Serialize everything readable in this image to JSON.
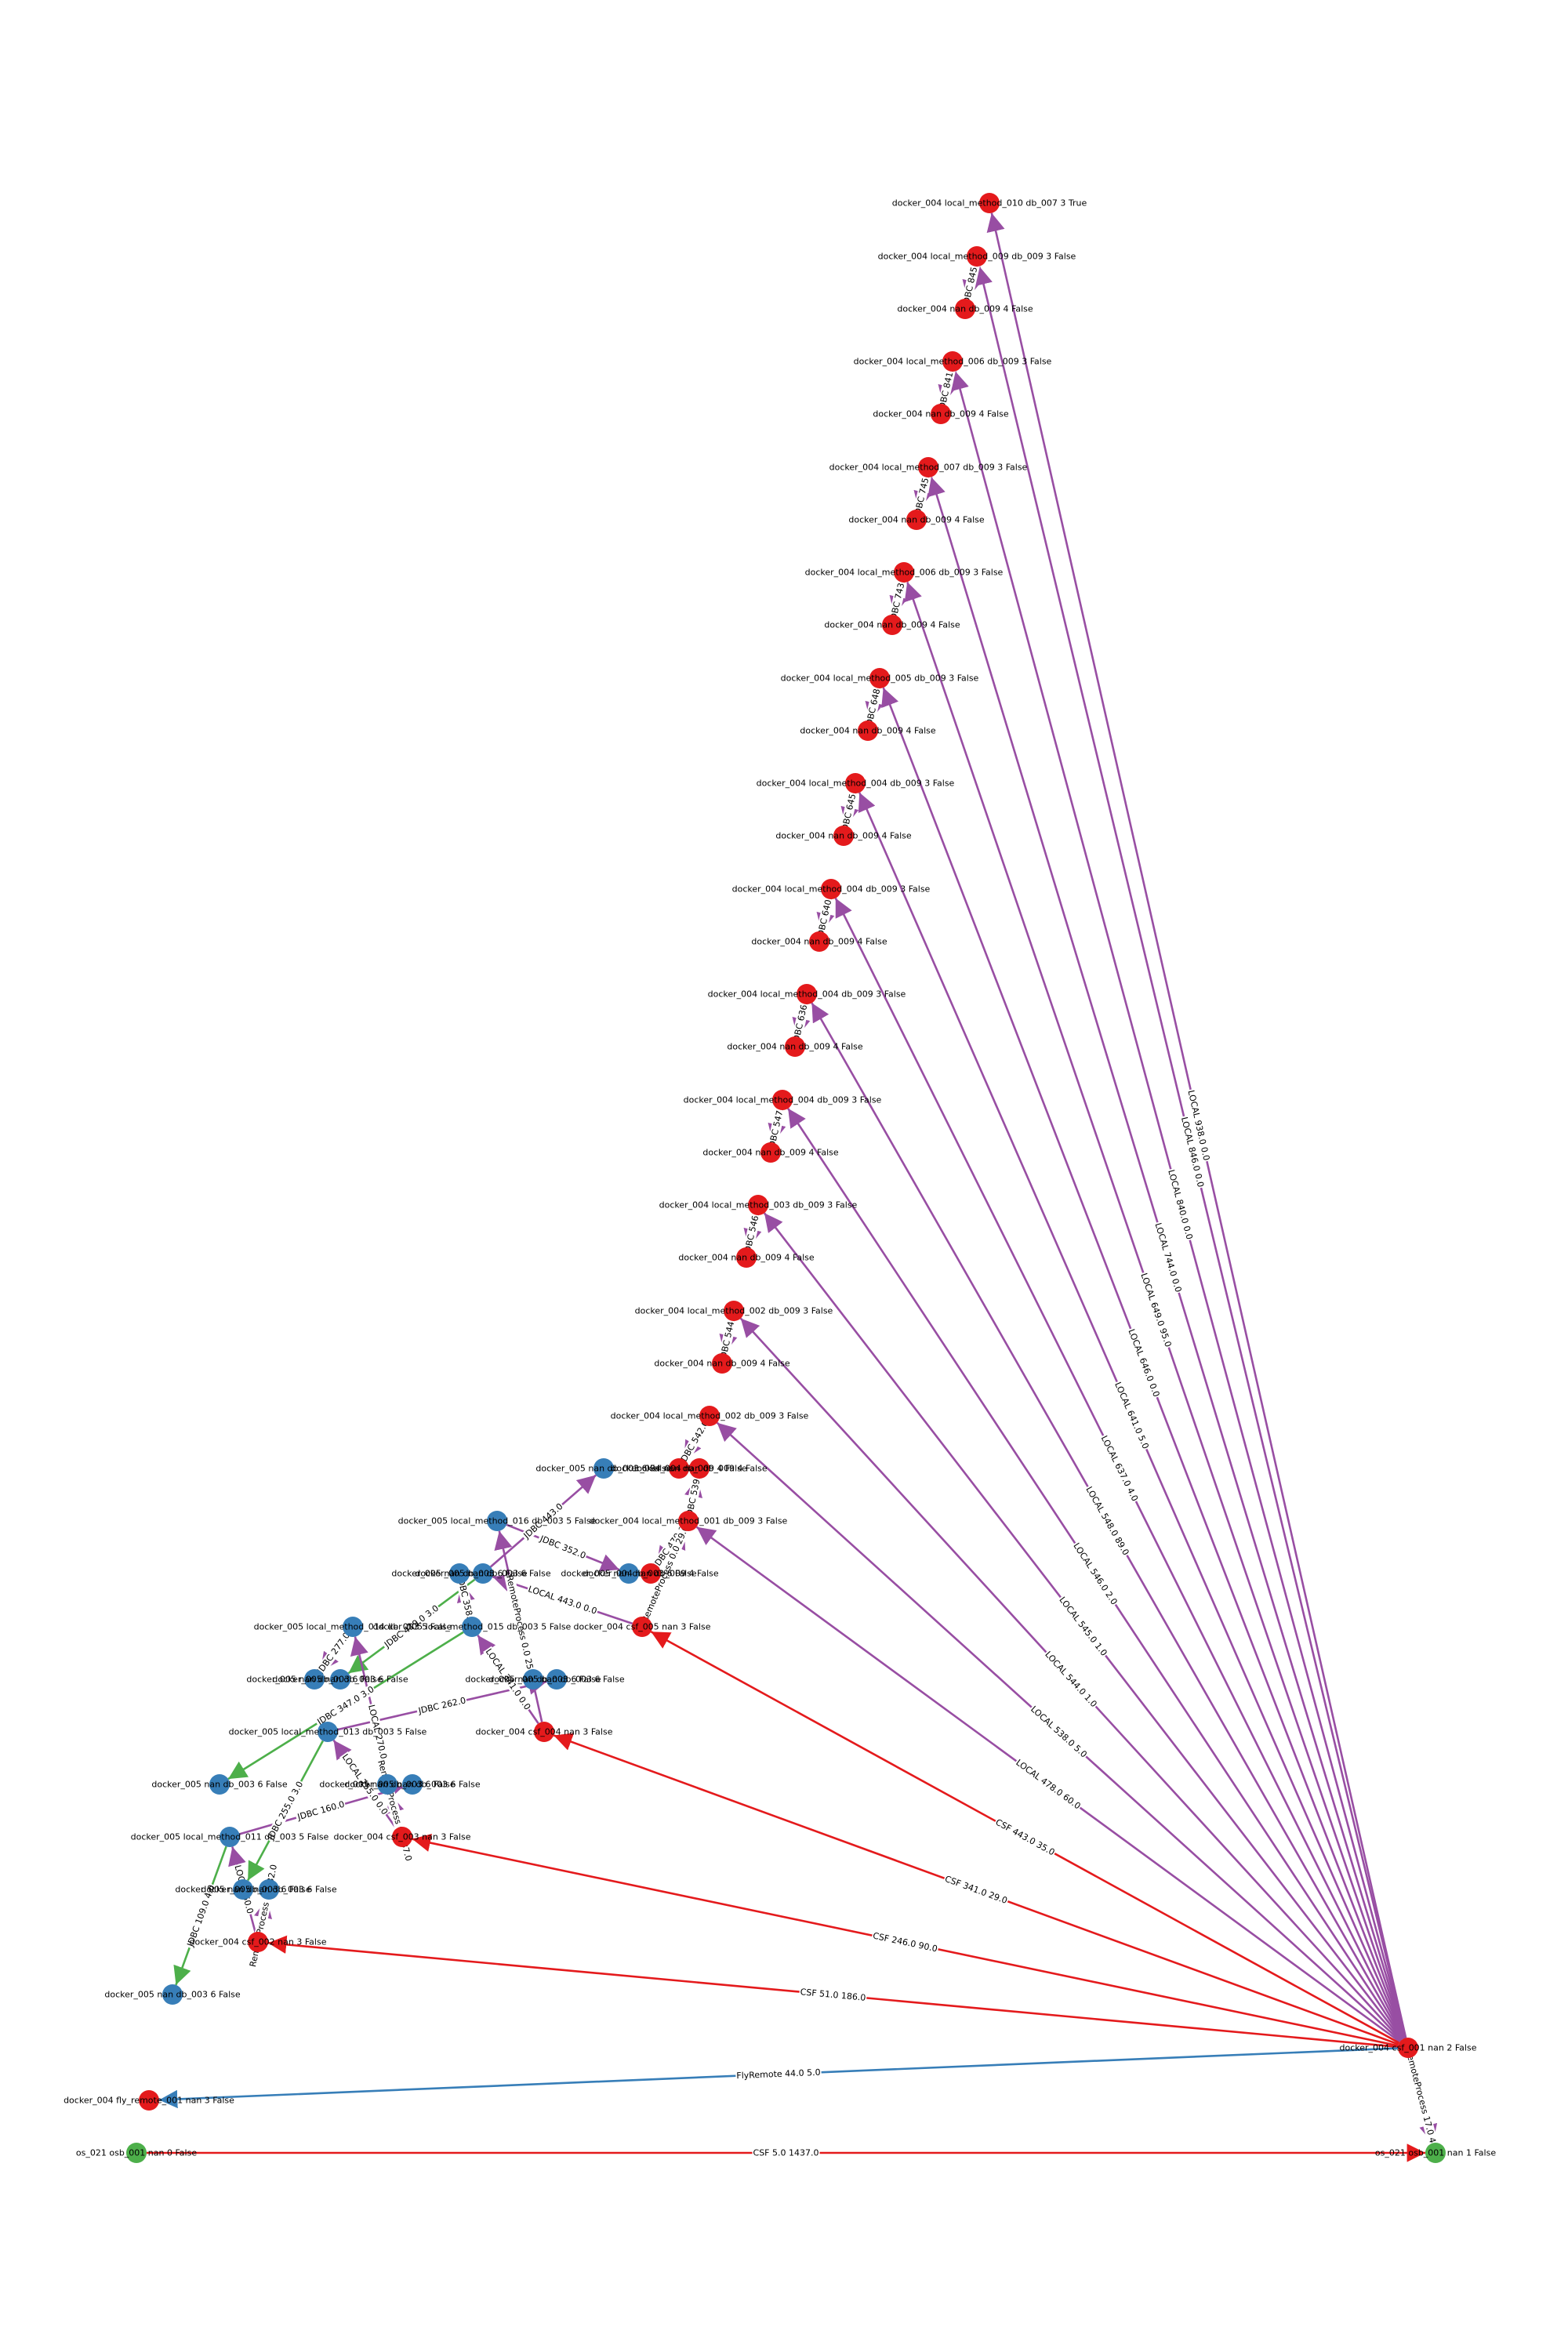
{
  "colors": {
    "red_node": "#e41a1c",
    "blue_node": "#377eb8",
    "green_node": "#4daf4a",
    "purple_edge": "#984ea3",
    "red_edge": "#e41a1c",
    "green_edge": "#4daf4a",
    "blue_edge": "#377eb8"
  },
  "nodes": [
    {
      "id": "n01",
      "label": "docker_004 local_method_010 db_007 3 True",
      "color": "red"
    },
    {
      "id": "n02",
      "label": "docker_004 local_method_009 db_009 3 False",
      "color": "red"
    },
    {
      "id": "n03",
      "label": "docker_004 nan db_009 4 False",
      "color": "red"
    },
    {
      "id": "n04",
      "label": "docker_004 local_method_006 db_009 3 False",
      "color": "red"
    },
    {
      "id": "n05",
      "label": "docker_004 nan db_009 4 False",
      "color": "red"
    },
    {
      "id": "n06",
      "label": "docker_004 local_method_007 db_009 3 False",
      "color": "red"
    },
    {
      "id": "n07",
      "label": "docker_004 nan db_009 4 False",
      "color": "red"
    },
    {
      "id": "n08",
      "label": "docker_004 local_method_006 db_009 3 False",
      "color": "red"
    },
    {
      "id": "n09",
      "label": "docker_004 nan db_009 4 False",
      "color": "red"
    },
    {
      "id": "n10",
      "label": "docker_004 local_method_005 db_009 3 False",
      "color": "red"
    },
    {
      "id": "n11",
      "label": "docker_004 nan db_009 4 False",
      "color": "red"
    },
    {
      "id": "n12",
      "label": "docker_004 local_method_004 db_009 3 False",
      "color": "red"
    },
    {
      "id": "n13",
      "label": "docker_004 nan db_009 4 False",
      "color": "red"
    },
    {
      "id": "n14",
      "label": "docker_004 local_method_004 db_009 3 False",
      "color": "red"
    },
    {
      "id": "n15",
      "label": "docker_004 nan db_009 4 False",
      "color": "red"
    },
    {
      "id": "n16",
      "label": "docker_004 local_method_004 db_009 3 False",
      "color": "red"
    },
    {
      "id": "n17",
      "label": "docker_004 nan db_009 4 False",
      "color": "red"
    },
    {
      "id": "n18",
      "label": "docker_004 local_method_004 db_009 3 False",
      "color": "red"
    },
    {
      "id": "n19",
      "label": "docker_004 nan db_009 4 False",
      "color": "red"
    },
    {
      "id": "n20",
      "label": "docker_004 local_method_003 db_009 3 False",
      "color": "red"
    },
    {
      "id": "n21",
      "label": "docker_004 nan db_009 4 False",
      "color": "red"
    },
    {
      "id": "n22",
      "label": "docker_004 local_method_002 db_009 3 False",
      "color": "red"
    },
    {
      "id": "n23",
      "label": "docker_004 nan db_009 4 False",
      "color": "red"
    },
    {
      "id": "n24",
      "label": "docker_004 local_method_002 db_009 3 False",
      "color": "red"
    },
    {
      "id": "n25",
      "label": "docker_005 nan db_003 6 False",
      "color": "blue"
    },
    {
      "id": "n26",
      "label": "docker_004 nan db_009 4 False",
      "color": "red"
    },
    {
      "id": "n27",
      "label": "docker_004 nan db_009 4 False",
      "color": "red"
    },
    {
      "id": "n28",
      "label": "docker_005 local_method_016 db_003 5 False",
      "color": "blue"
    },
    {
      "id": "n29",
      "label": "docker_004 local_method_001 db_009 3 False",
      "color": "red"
    },
    {
      "id": "n30",
      "label": "docker_005 nan db_003 6 False",
      "color": "blue"
    },
    {
      "id": "n31",
      "label": "docker_005 nan db_003 6 False",
      "color": "blue"
    },
    {
      "id": "n32",
      "label": "docker_005 nan db_003 6 False",
      "color": "blue"
    },
    {
      "id": "n33",
      "label": "docker_004 nan db_009 4 False",
      "color": "red"
    },
    {
      "id": "n34",
      "label": "docker_005 local_method_014 db_003 5 False",
      "color": "blue"
    },
    {
      "id": "n35",
      "label": "docker_005 local_method_015 db_003 5 False",
      "color": "blue"
    },
    {
      "id": "n36",
      "label": "docker_004 csf_005 nan 3 False",
      "color": "red"
    },
    {
      "id": "n37",
      "label": "docker_005 nan db_003 6 False",
      "color": "blue"
    },
    {
      "id": "n38",
      "label": "docker_005 nan db_003 6 False",
      "color": "blue"
    },
    {
      "id": "n39",
      "label": "docker_005 nan db_003 6 False",
      "color": "blue"
    },
    {
      "id": "n40",
      "label": "docker_005 nan db_003 6 False",
      "color": "blue"
    },
    {
      "id": "n41",
      "label": "docker_005 local_method_013 db_003 5 False",
      "color": "blue"
    },
    {
      "id": "n42",
      "label": "docker_004 csf_004 nan 3 False",
      "color": "red"
    },
    {
      "id": "n43",
      "label": "docker_005 nan db_003 6 False",
      "color": "blue"
    },
    {
      "id": "n44",
      "label": "docker_005 nan db_003 6 False",
      "color": "blue"
    },
    {
      "id": "n45",
      "label": "docker_005 nan db_003 6 False",
      "color": "blue"
    },
    {
      "id": "n46",
      "label": "docker_005 local_method_011 db_003 5 False",
      "color": "blue"
    },
    {
      "id": "n47",
      "label": "docker_004 csf_003 nan 3 False",
      "color": "red"
    },
    {
      "id": "n48",
      "label": "docker_005 nan db_003 6 False",
      "color": "blue"
    },
    {
      "id": "n49",
      "label": "docker_005 nan db_003 6 False",
      "color": "blue"
    },
    {
      "id": "n50",
      "label": "docker_004 csf_002 nan 3 False",
      "color": "red"
    },
    {
      "id": "n51",
      "label": "docker_005 nan db_003 6 False",
      "color": "blue"
    },
    {
      "id": "n52",
      "label": "docker_004 csf_001 nan 2 False",
      "color": "red"
    },
    {
      "id": "n53",
      "label": "docker_004 fly_remote_001 nan 3 False",
      "color": "red"
    },
    {
      "id": "n54",
      "label": "os_021 osb_001 nan 0 False",
      "color": "green"
    },
    {
      "id": "n55",
      "label": "os_021 osb_001 nan 1 False",
      "color": "green"
    }
  ],
  "edges": [
    {
      "from": "n52",
      "to": "n01",
      "color": "purple",
      "label": "LOCAL 938.0 0.0"
    },
    {
      "from": "n52",
      "to": "n02",
      "color": "purple",
      "label": "LOCAL 846.0 0.0"
    },
    {
      "from": "n52",
      "to": "n04",
      "color": "purple",
      "label": "LOCAL 840.0 0.0"
    },
    {
      "from": "n52",
      "to": "n06",
      "color": "purple",
      "label": "LOCAL 744.0 0.0"
    },
    {
      "from": "n52",
      "to": "n08",
      "color": "purple",
      "label": "LOCAL 649.0 95.0"
    },
    {
      "from": "n52",
      "to": "n10",
      "color": "purple",
      "label": "LOCAL 646.0 0.0"
    },
    {
      "from": "n52",
      "to": "n12",
      "color": "purple",
      "label": "LOCAL 641.0 5.0"
    },
    {
      "from": "n52",
      "to": "n14",
      "color": "purple",
      "label": "LOCAL 637.0 4.0"
    },
    {
      "from": "n52",
      "to": "n16",
      "color": "purple",
      "label": "LOCAL 548.0 89.0"
    },
    {
      "from": "n52",
      "to": "n18",
      "color": "purple",
      "label": "LOCAL 546.0 2.0"
    },
    {
      "from": "n52",
      "to": "n20",
      "color": "purple",
      "label": "LOCAL 545.0 1.0"
    },
    {
      "from": "n52",
      "to": "n22",
      "color": "purple",
      "label": "LOCAL 544.0 1.0"
    },
    {
      "from": "n52",
      "to": "n24",
      "color": "purple",
      "label": "LOCAL 538.0 5.0"
    },
    {
      "from": "n52",
      "to": "n29",
      "color": "purple",
      "label": "LOCAL 478.0 60.0"
    },
    {
      "from": "n52",
      "to": "n36",
      "color": "red",
      "label": "CSF 443.0 35.0"
    },
    {
      "from": "n52",
      "to": "n42",
      "color": "red",
      "label": "CSF 341.0 29.0"
    },
    {
      "from": "n52",
      "to": "n47",
      "color": "red",
      "label": "CSF 246.0 90.0"
    },
    {
      "from": "n52",
      "to": "n50",
      "color": "red",
      "label": "CSF 51.0 186.0"
    },
    {
      "from": "n52",
      "to": "n53",
      "color": "blue",
      "label": "FlyRemote 44.0 5.0"
    },
    {
      "from": "n52",
      "to": "n55",
      "color": "purple",
      "label": "RemoteProcess 17.0 4.0"
    },
    {
      "from": "n54",
      "to": "n55",
      "color": "red",
      "label": "CSF 5.0 1437.0"
    },
    {
      "from": "n02",
      "to": "n03",
      "color": "purple",
      "label": "JDBC 845.0"
    },
    {
      "from": "n04",
      "to": "n05",
      "color": "purple",
      "label": "JDBC 841.0"
    },
    {
      "from": "n06",
      "to": "n07",
      "color": "purple",
      "label": "JDBC 745.0"
    },
    {
      "from": "n08",
      "to": "n09",
      "color": "purple",
      "label": "JDBC 743.0"
    },
    {
      "from": "n10",
      "to": "n11",
      "color": "purple",
      "label": "JDBC 648.0"
    },
    {
      "from": "n12",
      "to": "n13",
      "color": "purple",
      "label": "JDBC 645.0"
    },
    {
      "from": "n14",
      "to": "n15",
      "color": "purple",
      "label": "JDBC 640.0"
    },
    {
      "from": "n16",
      "to": "n17",
      "color": "purple",
      "label": "JDBC 636.0"
    },
    {
      "from": "n18",
      "to": "n19",
      "color": "purple",
      "label": "JDBC 547.0"
    },
    {
      "from": "n20",
      "to": "n21",
      "color": "purple",
      "label": "JDBC 546.0"
    },
    {
      "from": "n22",
      "to": "n23",
      "color": "purple",
      "label": "JDBC 544.0"
    },
    {
      "from": "n24",
      "to": "n26",
      "color": "purple",
      "label": "JDBC 542.0"
    },
    {
      "from": "n29",
      "to": "n27",
      "color": "purple",
      "label": "JDBC 539.0"
    },
    {
      "from": "n29",
      "to": "n33",
      "color": "purple",
      "label": "JDBC 479.0"
    },
    {
      "from": "n36",
      "to": "n29",
      "color": "purple",
      "label": "RemoteProcess 0.0 29.0"
    },
    {
      "from": "n36",
      "to": "n31",
      "color": "purple",
      "label": "LOCAL 443.0 0.0"
    },
    {
      "from": "n31",
      "to": "n25",
      "color": "purple",
      "label": "JDBC 443.0"
    },
    {
      "from": "n31",
      "to": "n38",
      "color": "green",
      "label": "JDBC 419.0 3.0"
    },
    {
      "from": "n42",
      "to": "n35",
      "color": "purple",
      "label": "LOCAL 341.0 0.0"
    },
    {
      "from": "n42",
      "to": "n28",
      "color": "purple",
      "label": "RemoteProcess 0.0 25.0"
    },
    {
      "from": "n28",
      "to": "n32",
      "color": "purple",
      "label": "JDBC 352.0"
    },
    {
      "from": "n35",
      "to": "n30",
      "color": "purple",
      "label": "JDBC 358.0"
    },
    {
      "from": "n35",
      "to": "n43",
      "color": "green",
      "label": "JDBC 347.0 3.0"
    },
    {
      "from": "n47",
      "to": "n41",
      "color": "purple",
      "label": "LOCAL 255.0 0.0"
    },
    {
      "from": "n47",
      "to": "n34",
      "color": "purple",
      "label": "LOCAL 270.0"
    },
    {
      "from": "n47",
      "to": "n44",
      "color": "purple",
      "label": "RemoteProcess 0.0 37.0"
    },
    {
      "from": "n34",
      "to": "n37",
      "color": "purple",
      "label": "JDBC 277.0"
    },
    {
      "from": "n41",
      "to": "n40",
      "color": "purple",
      "label": "JDBC 262.0"
    },
    {
      "from": "n41",
      "to": "n48",
      "color": "green",
      "label": "JDBC 255.0 3.0"
    },
    {
      "from": "n50",
      "to": "n46",
      "color": "purple",
      "label": "LOCAL 60.0"
    },
    {
      "from": "n50",
      "to": "n49",
      "color": "purple",
      "label": "RemoteProcess 0.0 32.0"
    },
    {
      "from": "n46",
      "to": "n45",
      "color": "purple",
      "label": "JDBC 160.0"
    },
    {
      "from": "n46",
      "to": "n51",
      "color": "green",
      "label": "JDBC 109.0 4.0"
    }
  ]
}
